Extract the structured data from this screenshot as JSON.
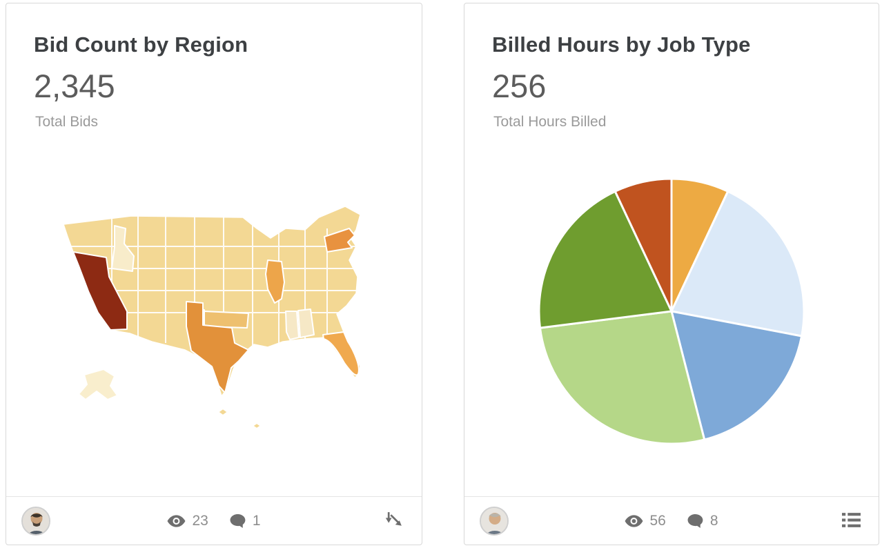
{
  "cards": [
    {
      "title": "Bid Count by Region",
      "metric_value": "2,345",
      "metric_label": "Total Bids",
      "footer": {
        "views": "23",
        "comments": "1"
      }
    },
    {
      "title": "Billed Hours by Job Type",
      "metric_value": "256",
      "metric_label": "Total Hours Billed",
      "footer": {
        "views": "56",
        "comments": "8"
      }
    }
  ],
  "chart_data": [
    {
      "type": "heatmap",
      "subtype": "us-state-choropleth",
      "title": "Bid Count by Region",
      "total_label": "Total Bids",
      "total_value": 2345,
      "legend": "none",
      "value_encoding": "darker = more bids; California highest; Texas, New York, Florida, Illinois elevated; Idaho, Alabama, Mississippi lowest",
      "state_colors": {
        "default": "#f3d894",
        "california": "#8d2a13",
        "texas": "#e2913a",
        "new_york": "#e8923f",
        "florida": "#f0a94e",
        "illinois": "#eda54a",
        "oklahoma": "#eec06f",
        "idaho": "#f8ecca",
        "mississippi": "#f6e8c6",
        "alabama": "#f6e8c6",
        "alaska": "#f9eecd",
        "islands": "#f3d894"
      }
    },
    {
      "type": "pie",
      "title": "Billed Hours by Job Type",
      "total_label": "Total Hours Billed",
      "total_value": 256,
      "legend": "none",
      "start_angle_deg": 0,
      "direction": "clockwise-from-top",
      "segments": [
        {
          "color": "#edaa43",
          "percent": 7,
          "value": 18
        },
        {
          "color": "#dbe9f8",
          "percent": 21,
          "value": 54
        },
        {
          "color": "#7ea9d8",
          "percent": 18,
          "value": 46
        },
        {
          "color": "#b5d788",
          "percent": 27,
          "value": 69
        },
        {
          "color": "#6f9d2f",
          "percent": 20,
          "value": 51
        },
        {
          "color": "#c0531f",
          "percent": 7,
          "value": 18
        }
      ]
    }
  ]
}
